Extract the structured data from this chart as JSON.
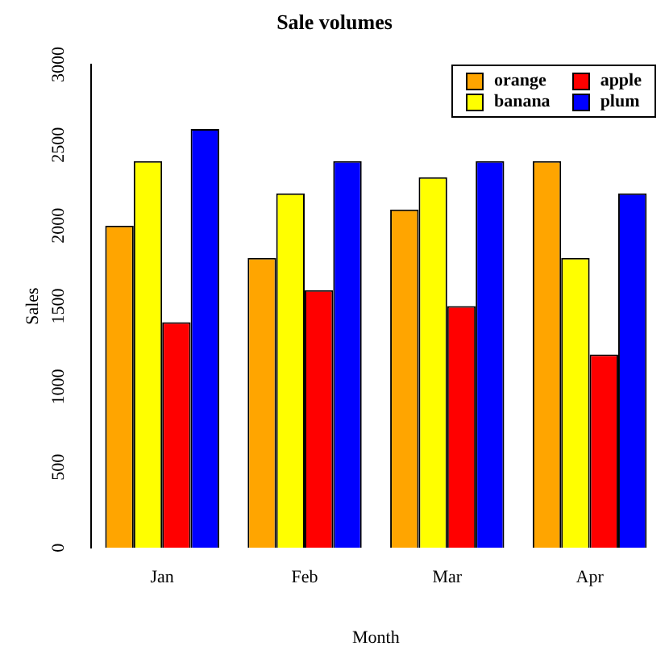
{
  "chart_data": {
    "type": "bar",
    "title": "Sale volumes",
    "xlabel": "Month",
    "ylabel": "Sales",
    "categories": [
      "Jan",
      "Feb",
      "Mar",
      "Apr"
    ],
    "series": [
      {
        "name": "orange",
        "color": "#ffa500",
        "values": [
          2000,
          1800,
          2100,
          2400
        ]
      },
      {
        "name": "banana",
        "color": "#ffff00",
        "values": [
          2400,
          2200,
          2300,
          1800
        ]
      },
      {
        "name": "apple",
        "color": "#ff0000",
        "values": [
          1400,
          1600,
          1500,
          1200
        ]
      },
      {
        "name": "plum",
        "color": "#0000ff",
        "values": [
          2600,
          2400,
          2400,
          2200
        ]
      }
    ],
    "ylim": [
      0,
      3000
    ],
    "yticks": [
      0,
      500,
      1000,
      1500,
      2000,
      2500,
      3000
    ],
    "grid": false,
    "legend": "top right"
  }
}
